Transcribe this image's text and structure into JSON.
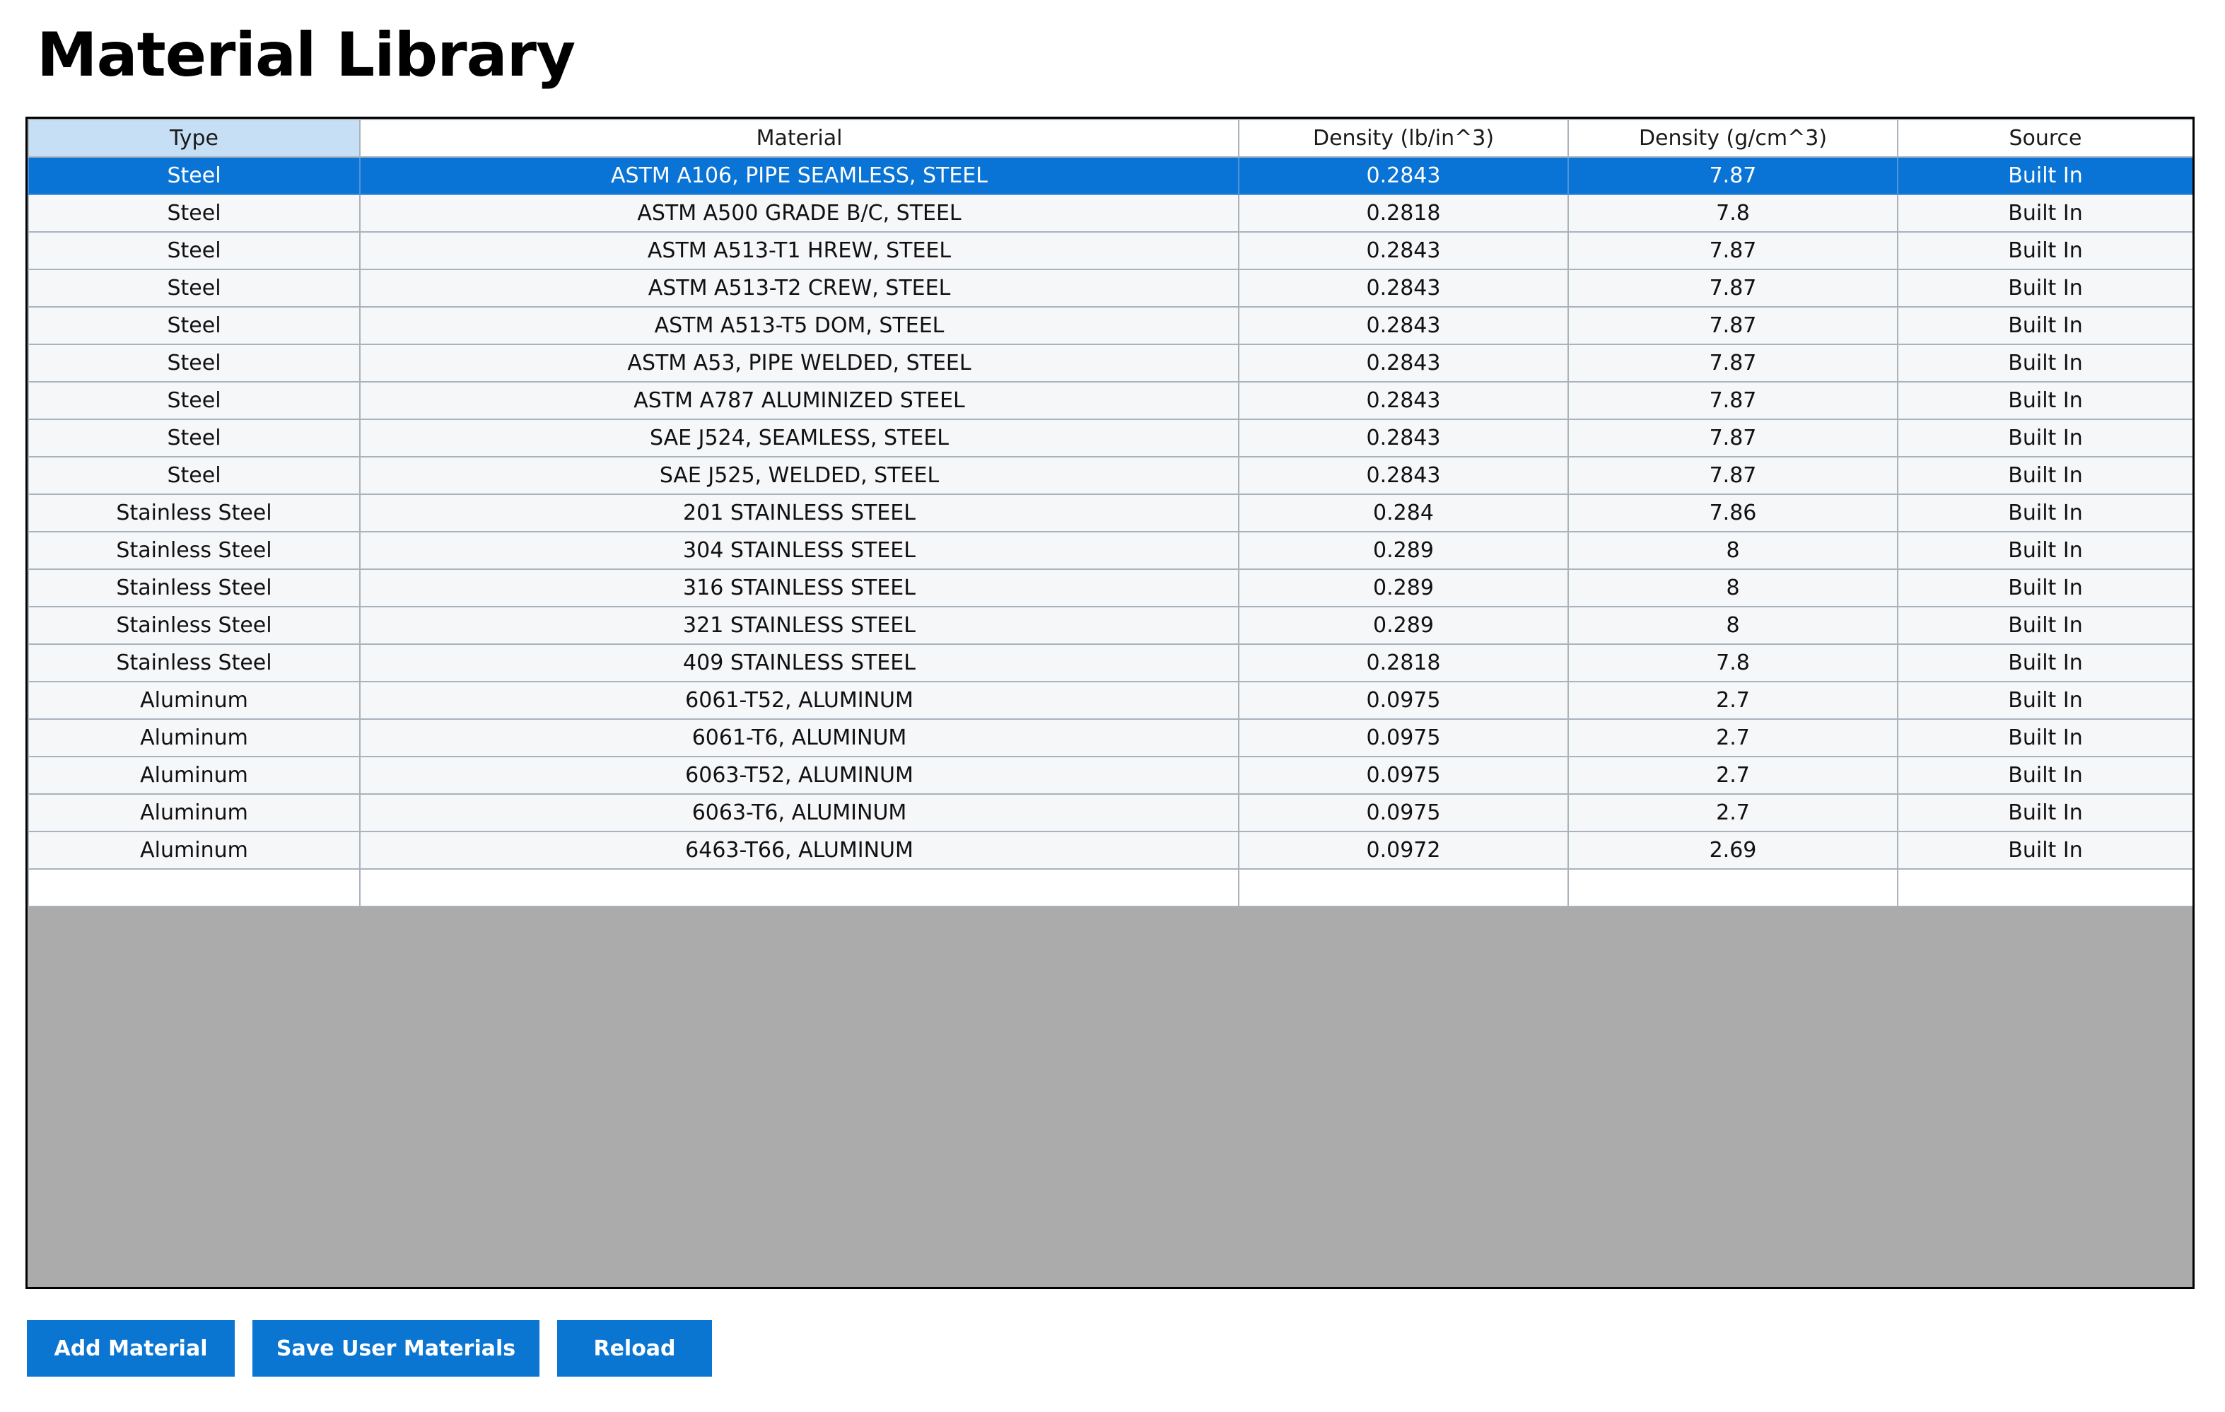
{
  "page": {
    "title": "Material Library"
  },
  "table": {
    "columns": [
      "Type",
      "Material",
      "Density (lb/in^3)",
      "Density (g/cm^3)",
      "Source"
    ],
    "sorted_column": "Type",
    "selected_row": 0,
    "rows": [
      {
        "type": "Steel",
        "material": "ASTM A106, PIPE SEAMLESS, STEEL",
        "density_lb_in3": "0.2843",
        "density_g_cm3": "7.87",
        "source": "Built In"
      },
      {
        "type": "Steel",
        "material": "ASTM A500 GRADE B/C, STEEL",
        "density_lb_in3": "0.2818",
        "density_g_cm3": "7.8",
        "source": "Built In"
      },
      {
        "type": "Steel",
        "material": "ASTM A513-T1 HREW, STEEL",
        "density_lb_in3": "0.2843",
        "density_g_cm3": "7.87",
        "source": "Built In"
      },
      {
        "type": "Steel",
        "material": "ASTM A513-T2 CREW, STEEL",
        "density_lb_in3": "0.2843",
        "density_g_cm3": "7.87",
        "source": "Built In"
      },
      {
        "type": "Steel",
        "material": "ASTM A513-T5 DOM, STEEL",
        "density_lb_in3": "0.2843",
        "density_g_cm3": "7.87",
        "source": "Built In"
      },
      {
        "type": "Steel",
        "material": "ASTM A53, PIPE WELDED, STEEL",
        "density_lb_in3": "0.2843",
        "density_g_cm3": "7.87",
        "source": "Built In"
      },
      {
        "type": "Steel",
        "material": "ASTM A787 ALUMINIZED STEEL",
        "density_lb_in3": "0.2843",
        "density_g_cm3": "7.87",
        "source": "Built In"
      },
      {
        "type": "Steel",
        "material": "SAE J524, SEAMLESS, STEEL",
        "density_lb_in3": "0.2843",
        "density_g_cm3": "7.87",
        "source": "Built In"
      },
      {
        "type": "Steel",
        "material": "SAE J525, WELDED, STEEL",
        "density_lb_in3": "0.2843",
        "density_g_cm3": "7.87",
        "source": "Built In"
      },
      {
        "type": "Stainless Steel",
        "material": "201 STAINLESS STEEL",
        "density_lb_in3": "0.284",
        "density_g_cm3": "7.86",
        "source": "Built In"
      },
      {
        "type": "Stainless Steel",
        "material": "304 STAINLESS STEEL",
        "density_lb_in3": "0.289",
        "density_g_cm3": "8",
        "source": "Built In"
      },
      {
        "type": "Stainless Steel",
        "material": "316 STAINLESS STEEL",
        "density_lb_in3": "0.289",
        "density_g_cm3": "8",
        "source": "Built In"
      },
      {
        "type": "Stainless Steel",
        "material": "321 STAINLESS STEEL",
        "density_lb_in3": "0.289",
        "density_g_cm3": "8",
        "source": "Built In"
      },
      {
        "type": "Stainless Steel",
        "material": "409 STAINLESS STEEL",
        "density_lb_in3": "0.2818",
        "density_g_cm3": "7.8",
        "source": "Built In"
      },
      {
        "type": "Aluminum",
        "material": "6061-T52, ALUMINUM",
        "density_lb_in3": "0.0975",
        "density_g_cm3": "2.7",
        "source": "Built In"
      },
      {
        "type": "Aluminum",
        "material": "6061-T6, ALUMINUM",
        "density_lb_in3": "0.0975",
        "density_g_cm3": "2.7",
        "source": "Built In"
      },
      {
        "type": "Aluminum",
        "material": "6063-T52, ALUMINUM",
        "density_lb_in3": "0.0975",
        "density_g_cm3": "2.7",
        "source": "Built In"
      },
      {
        "type": "Aluminum",
        "material": "6063-T6, ALUMINUM",
        "density_lb_in3": "0.0975",
        "density_g_cm3": "2.7",
        "source": "Built In"
      },
      {
        "type": "Aluminum",
        "material": "6463-T66, ALUMINUM",
        "density_lb_in3": "0.0972",
        "density_g_cm3": "2.69",
        "source": "Built In"
      }
    ]
  },
  "buttons": {
    "add_material": "Add Material",
    "save_user_materials": "Save User Materials",
    "reload": "Reload"
  },
  "colors": {
    "selected_row": "#0a74d6",
    "sorted_header": "#c6dff5",
    "button": "#0b76d2",
    "empty_area": "#ababab"
  }
}
